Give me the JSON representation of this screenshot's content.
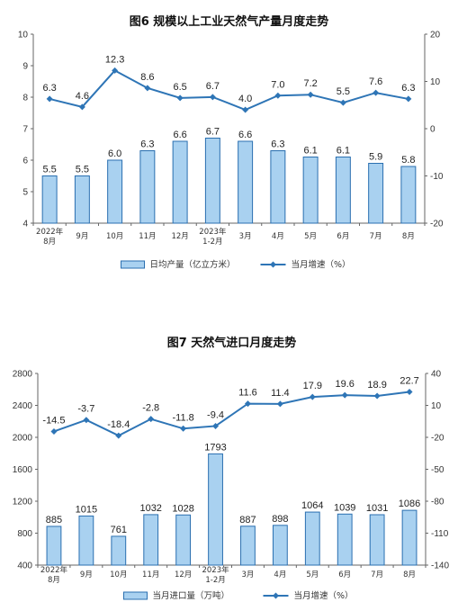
{
  "chart_data": [
    {
      "type": "bar",
      "title": "图6  规模以上工业天然气产量月度走势",
      "categories": [
        [
          "2022年",
          "8月"
        ],
        [
          "9月"
        ],
        [
          "10月"
        ],
        [
          "11月"
        ],
        [
          "12月"
        ],
        [
          "2023年",
          "1-2月"
        ],
        [
          "3月"
        ],
        [
          "4月"
        ],
        [
          "5月"
        ],
        [
          "6月"
        ],
        [
          "7月"
        ],
        [
          "8月"
        ]
      ],
      "bar_series": {
        "name": "日均产量（亿立方米）",
        "values": [
          5.5,
          5.5,
          6.0,
          6.3,
          6.6,
          6.7,
          6.6,
          6.3,
          6.1,
          6.1,
          5.9,
          5.8
        ]
      },
      "bar_value_labels": [
        "5.5",
        "5.5",
        "6.0",
        "6.3",
        "6.6",
        "6.7",
        "6.6",
        "6.3",
        "6.1",
        "6.1",
        "5.9",
        "5.8"
      ],
      "line_series": {
        "name": "当月增速（%）",
        "values": [
          6.3,
          4.6,
          12.3,
          8.6,
          6.5,
          6.7,
          4.0,
          7.0,
          7.2,
          5.5,
          7.6,
          6.3
        ]
      },
      "line_value_labels": [
        "6.3",
        "4.6",
        "12.3",
        "8.6",
        "6.5",
        "6.7",
        "4.0",
        "7.0",
        "7.2",
        "5.5",
        "7.6",
        "6.3"
      ],
      "y_left": {
        "range": [
          4,
          10
        ],
        "ticks": [
          "4",
          "5",
          "6",
          "7",
          "8",
          "9",
          "10"
        ]
      },
      "y_right": {
        "range": [
          -20,
          20
        ],
        "ticks": [
          "-20",
          "-10",
          "0",
          "10",
          "20"
        ]
      },
      "colors": {
        "bar_fill": "#a9d1f0",
        "bar_stroke": "#2a6fb0",
        "line": "#2e75b6"
      },
      "legend_placement": "bottom"
    },
    {
      "type": "bar",
      "title": "图7  天然气进口月度走势",
      "categories": [
        [
          "2022年",
          "8月"
        ],
        [
          "9月"
        ],
        [
          "10月"
        ],
        [
          "11月"
        ],
        [
          "12月"
        ],
        [
          "2023年",
          "1-2月"
        ],
        [
          "3月"
        ],
        [
          "4月"
        ],
        [
          "5月"
        ],
        [
          "6月"
        ],
        [
          "7月"
        ],
        [
          "8月"
        ]
      ],
      "bar_series": {
        "name": "当月进口量（万吨）",
        "values": [
          885,
          1015,
          761,
          1032,
          1028,
          1793,
          887,
          898,
          1064,
          1039,
          1031,
          1086
        ]
      },
      "bar_value_labels": [
        "885",
        "1015",
        "761",
        "1032",
        "1028",
        "1793",
        "887",
        "898",
        "1064",
        "1039",
        "1031",
        "1086"
      ],
      "line_series": {
        "name": "当月增速（%）",
        "values": [
          -14.5,
          -3.7,
          -18.4,
          -2.8,
          -11.8,
          -9.4,
          11.6,
          11.4,
          17.9,
          19.6,
          18.9,
          22.7
        ]
      },
      "line_value_labels": [
        "-14.5",
        "-3.7",
        "-18.4",
        "-2.8",
        "-11.8",
        "-9.4",
        "11.6",
        "11.4",
        "17.9",
        "19.6",
        "18.9",
        "22.7"
      ],
      "y_left": {
        "range": [
          400,
          2800
        ],
        "ticks": [
          "400",
          "800",
          "1200",
          "1600",
          "2000",
          "2400",
          "2800"
        ]
      },
      "y_right": {
        "range": [
          -140,
          40
        ],
        "ticks": [
          "-140",
          "-110",
          "-80",
          "-50",
          "-20",
          "10",
          "40"
        ]
      },
      "colors": {
        "bar_fill": "#a9d1f0",
        "bar_stroke": "#2a6fb0",
        "line": "#2e75b6"
      },
      "legend_placement": "bottom"
    }
  ]
}
